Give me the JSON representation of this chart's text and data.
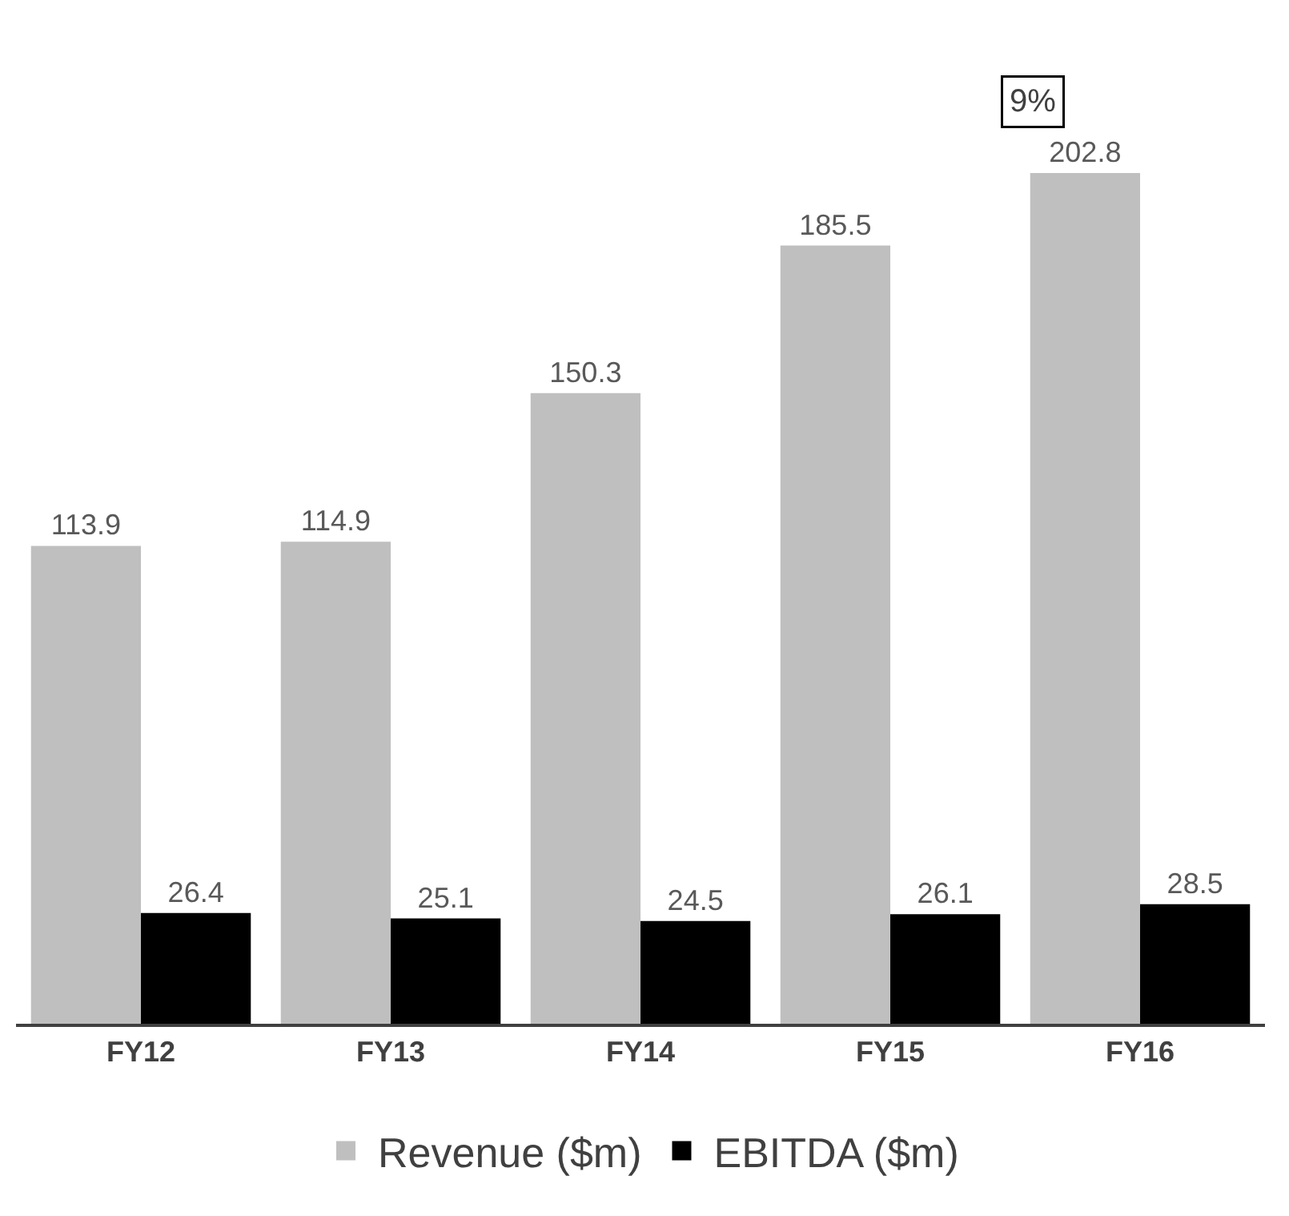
{
  "chart_data": {
    "type": "bar",
    "categories": [
      "FY12",
      "FY13",
      "FY14",
      "FY15",
      "FY16"
    ],
    "series": [
      {
        "name": "Revenue ($m)",
        "color": "#bfbfbf",
        "values": [
          113.9,
          114.9,
          150.3,
          185.5,
          202.8
        ]
      },
      {
        "name": "EBITDA ($m)",
        "color": "#000000",
        "values": [
          26.4,
          25.1,
          24.5,
          26.1,
          28.5
        ]
      }
    ],
    "data_labels": true,
    "legend": "bottom",
    "tick_labels": "x",
    "annotations": [
      "9%"
    ]
  }
}
